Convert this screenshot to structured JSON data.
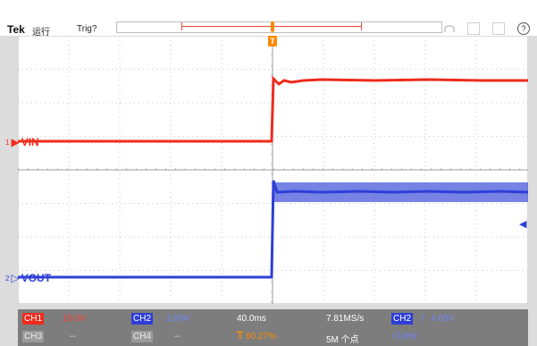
{
  "topbar": {
    "brand": "Tek",
    "run_state": "运行",
    "trigger_state": "Trig?"
  },
  "trigger_marker": {
    "label": "T"
  },
  "channels": {
    "ch1_marker": {
      "num": "1",
      "label": "VIN"
    },
    "ch2_marker": {
      "num": "2",
      "label": "VOUT"
    }
  },
  "status": {
    "ch1": {
      "label": "CH1",
      "scale": "10.0V"
    },
    "ch2": {
      "label": "CH2",
      "scale": "2.00V"
    },
    "ch3": {
      "label": "CH3",
      "scale": "--"
    },
    "ch4": {
      "label": "CH4",
      "scale": "--"
    },
    "timebase": "40.0ms",
    "trigger_pos": "50.27%",
    "sample_rate": "7.81MS/s",
    "record_length": "5M 个点",
    "trigger_source": "CH2",
    "trigger_slope": "/",
    "trigger_level": "4.00V",
    "trigger_freq": "<10Hz"
  },
  "colors": {
    "ch1": "#ee2b1d",
    "ch2": "#2d3fd6",
    "trigger": "#ff8a00"
  }
}
